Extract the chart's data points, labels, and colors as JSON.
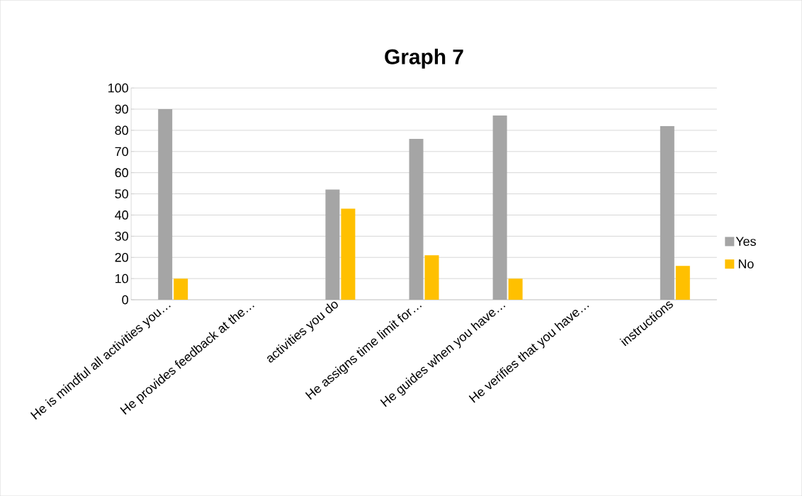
{
  "chart_data": {
    "type": "bar",
    "title": "Graph 7",
    "categories": [
      "He is mindful all activities you…",
      "He provides feedback at the…",
      "activities you do",
      "He assigns time limit for…",
      "He guides when you have…",
      "He verifies that you have…",
      "instructions"
    ],
    "series": [
      {
        "name": "Yes",
        "color": "#a5a5a5",
        "values": [
          90,
          null,
          52,
          76,
          87,
          null,
          82
        ]
      },
      {
        "name": "No",
        "color": "#ffc000",
        "values": [
          10,
          null,
          43,
          21,
          10,
          null,
          16
        ]
      }
    ],
    "ylim": [
      0,
      100
    ],
    "yticks": [
      0,
      10,
      20,
      30,
      40,
      50,
      60,
      70,
      80,
      90,
      100
    ],
    "grid": "y",
    "legend": "right"
  }
}
